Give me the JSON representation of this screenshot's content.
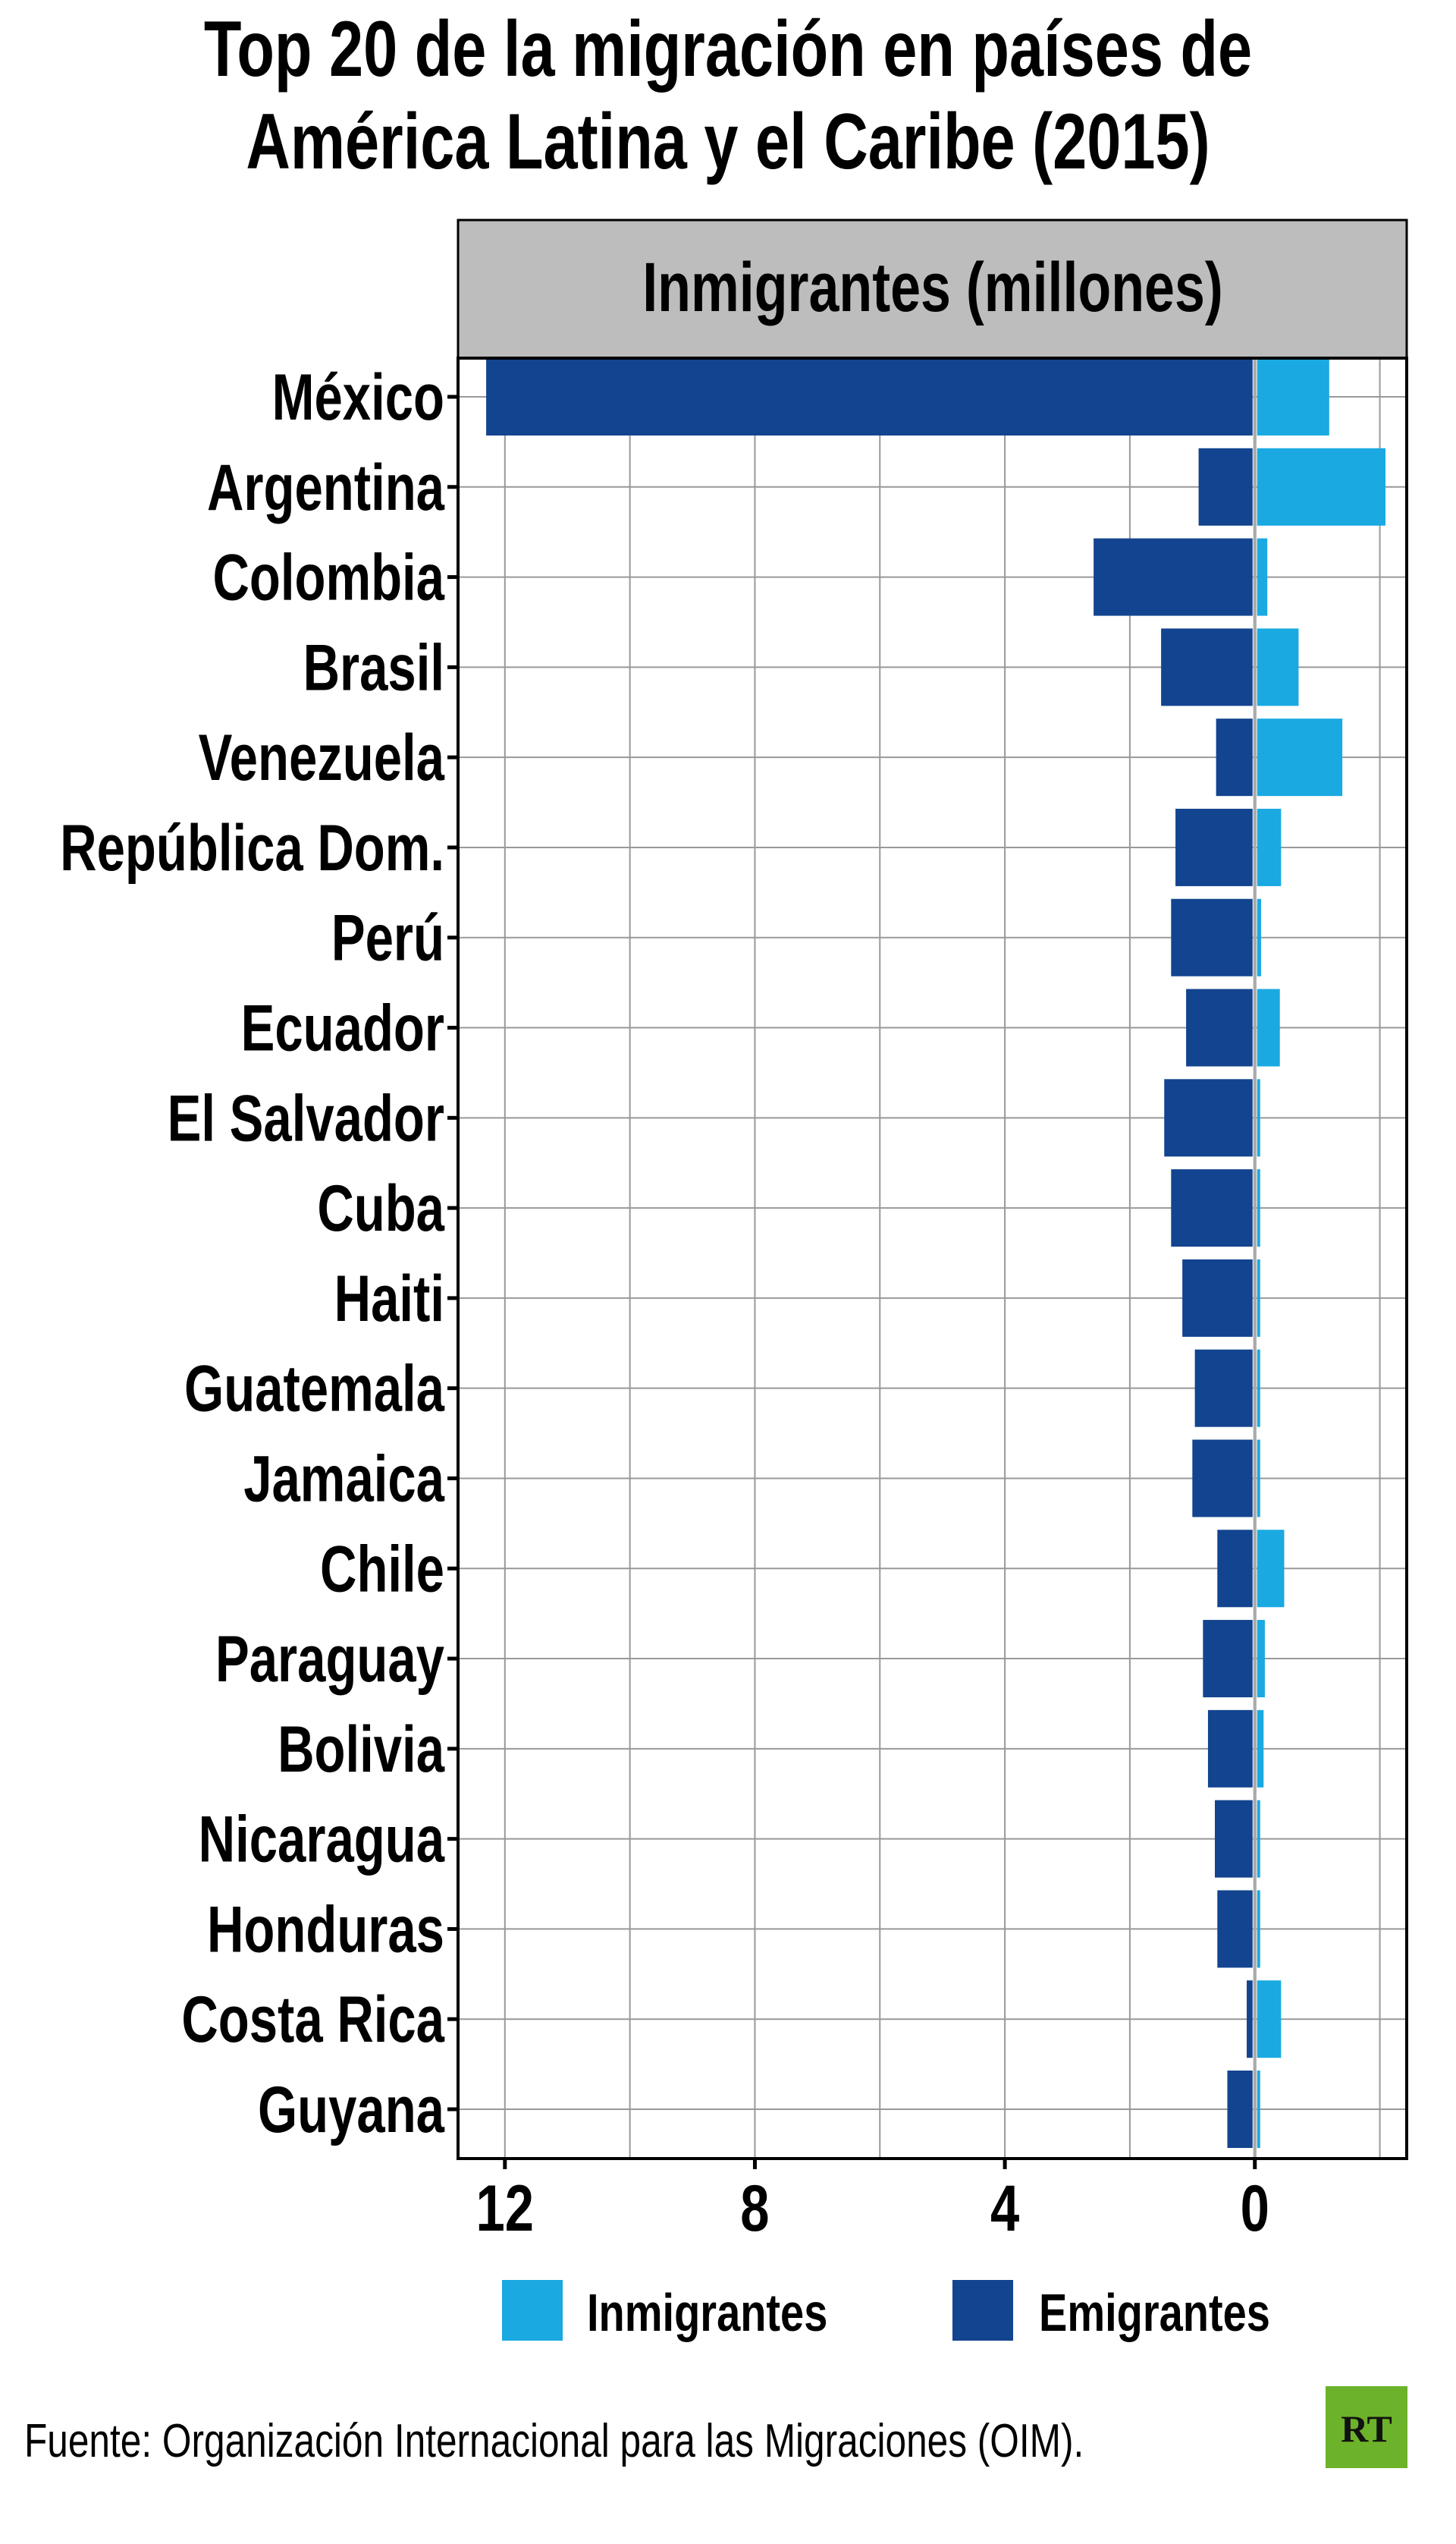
{
  "chart_data": {
    "type": "bar",
    "orientation": "horizontal-diverging",
    "title": "Top 20 de la migración en países de América Latina y el Caribe (2015)",
    "title_lines": [
      "Top 20 de la migración en países de",
      "América Latina y el Caribe (2015)"
    ],
    "panel_label": "Inmigrantes (millones)",
    "categories": [
      "México",
      "Argentina",
      "Colombia",
      "Brasil",
      "Venezuela",
      "República Dom.",
      "Perú",
      "Ecuador",
      "El Salvador",
      "Cuba",
      "Haiti",
      "Guatemala",
      "Jamaica",
      "Chile",
      "Paraguay",
      "Bolivia",
      "Nicaragua",
      "Honduras",
      "Costa Rica",
      "Guyana"
    ],
    "series": [
      {
        "name": "Inmigrantes",
        "color": "#1aa9e1",
        "values": [
          1.19,
          2.09,
          0.2,
          0.7,
          1.4,
          0.42,
          0.1,
          0.4,
          0.04,
          0.01,
          0.04,
          0.07,
          0.02,
          0.47,
          0.16,
          0.14,
          0.04,
          0.03,
          0.42,
          0.02
        ]
      },
      {
        "name": "Emigrantes",
        "color": "#12448f",
        "values": [
          12.3,
          0.9,
          2.58,
          1.5,
          0.62,
          1.27,
          1.34,
          1.1,
          1.45,
          1.34,
          1.16,
          0.96,
          1.0,
          0.6,
          0.83,
          0.75,
          0.64,
          0.6,
          0.13,
          0.44
        ]
      }
    ],
    "x_ticks": [
      12,
      8,
      4,
      0
    ],
    "x_tick_labels": [
      "12",
      "8",
      "4",
      "0"
    ],
    "xlim": [
      -12.75,
      2.43
    ],
    "grid": true,
    "legend_position": "bottom",
    "source": "Fuente: Organización Internacional para las Migraciones (OIM).",
    "logo_text": "RT"
  }
}
